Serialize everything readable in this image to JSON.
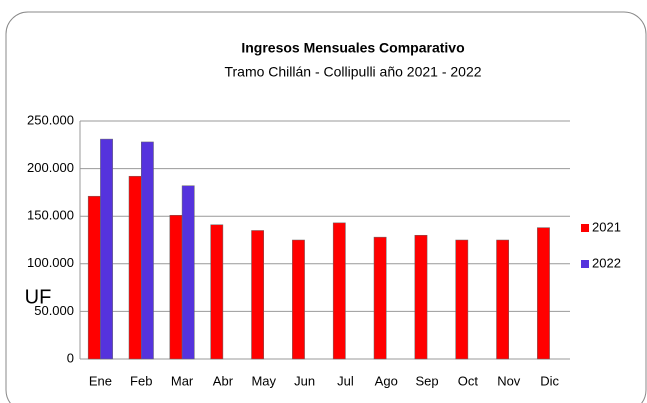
{
  "chart_data": {
    "type": "bar",
    "title": "Ingresos Mensuales Comparativo",
    "subtitle": "Tramo Chillán - Collipulli año 2021 - 2022",
    "y_label": "UF",
    "categories": [
      "Ene",
      "Feb",
      "Mar",
      "Abr",
      "May",
      "Jun",
      "Jul",
      "Ago",
      "Sep",
      "Oct",
      "Nov",
      "Dic"
    ],
    "series": [
      {
        "name": "2021",
        "color": "#ff0000",
        "values": [
          171000,
          192000,
          151000,
          141000,
          135000,
          125000,
          143000,
          128000,
          130000,
          125000,
          125000,
          138000
        ]
      },
      {
        "name": "2022",
        "color": "#5533dd",
        "values": [
          231000,
          228000,
          182000,
          null,
          null,
          null,
          null,
          null,
          null,
          null,
          null,
          null
        ]
      }
    ],
    "ylim": [
      0,
      250000
    ],
    "yticks": [
      0,
      {
        "value": 50000,
        "label": "50.000"
      },
      {
        "value": 100000,
        "label": "100.000"
      },
      {
        "value": 150000,
        "label": "150.000"
      },
      {
        "value": 200000,
        "label": "200.000"
      },
      {
        "value": 250000,
        "label": "250.000"
      }
    ],
    "grid": true,
    "legend": "right"
  }
}
